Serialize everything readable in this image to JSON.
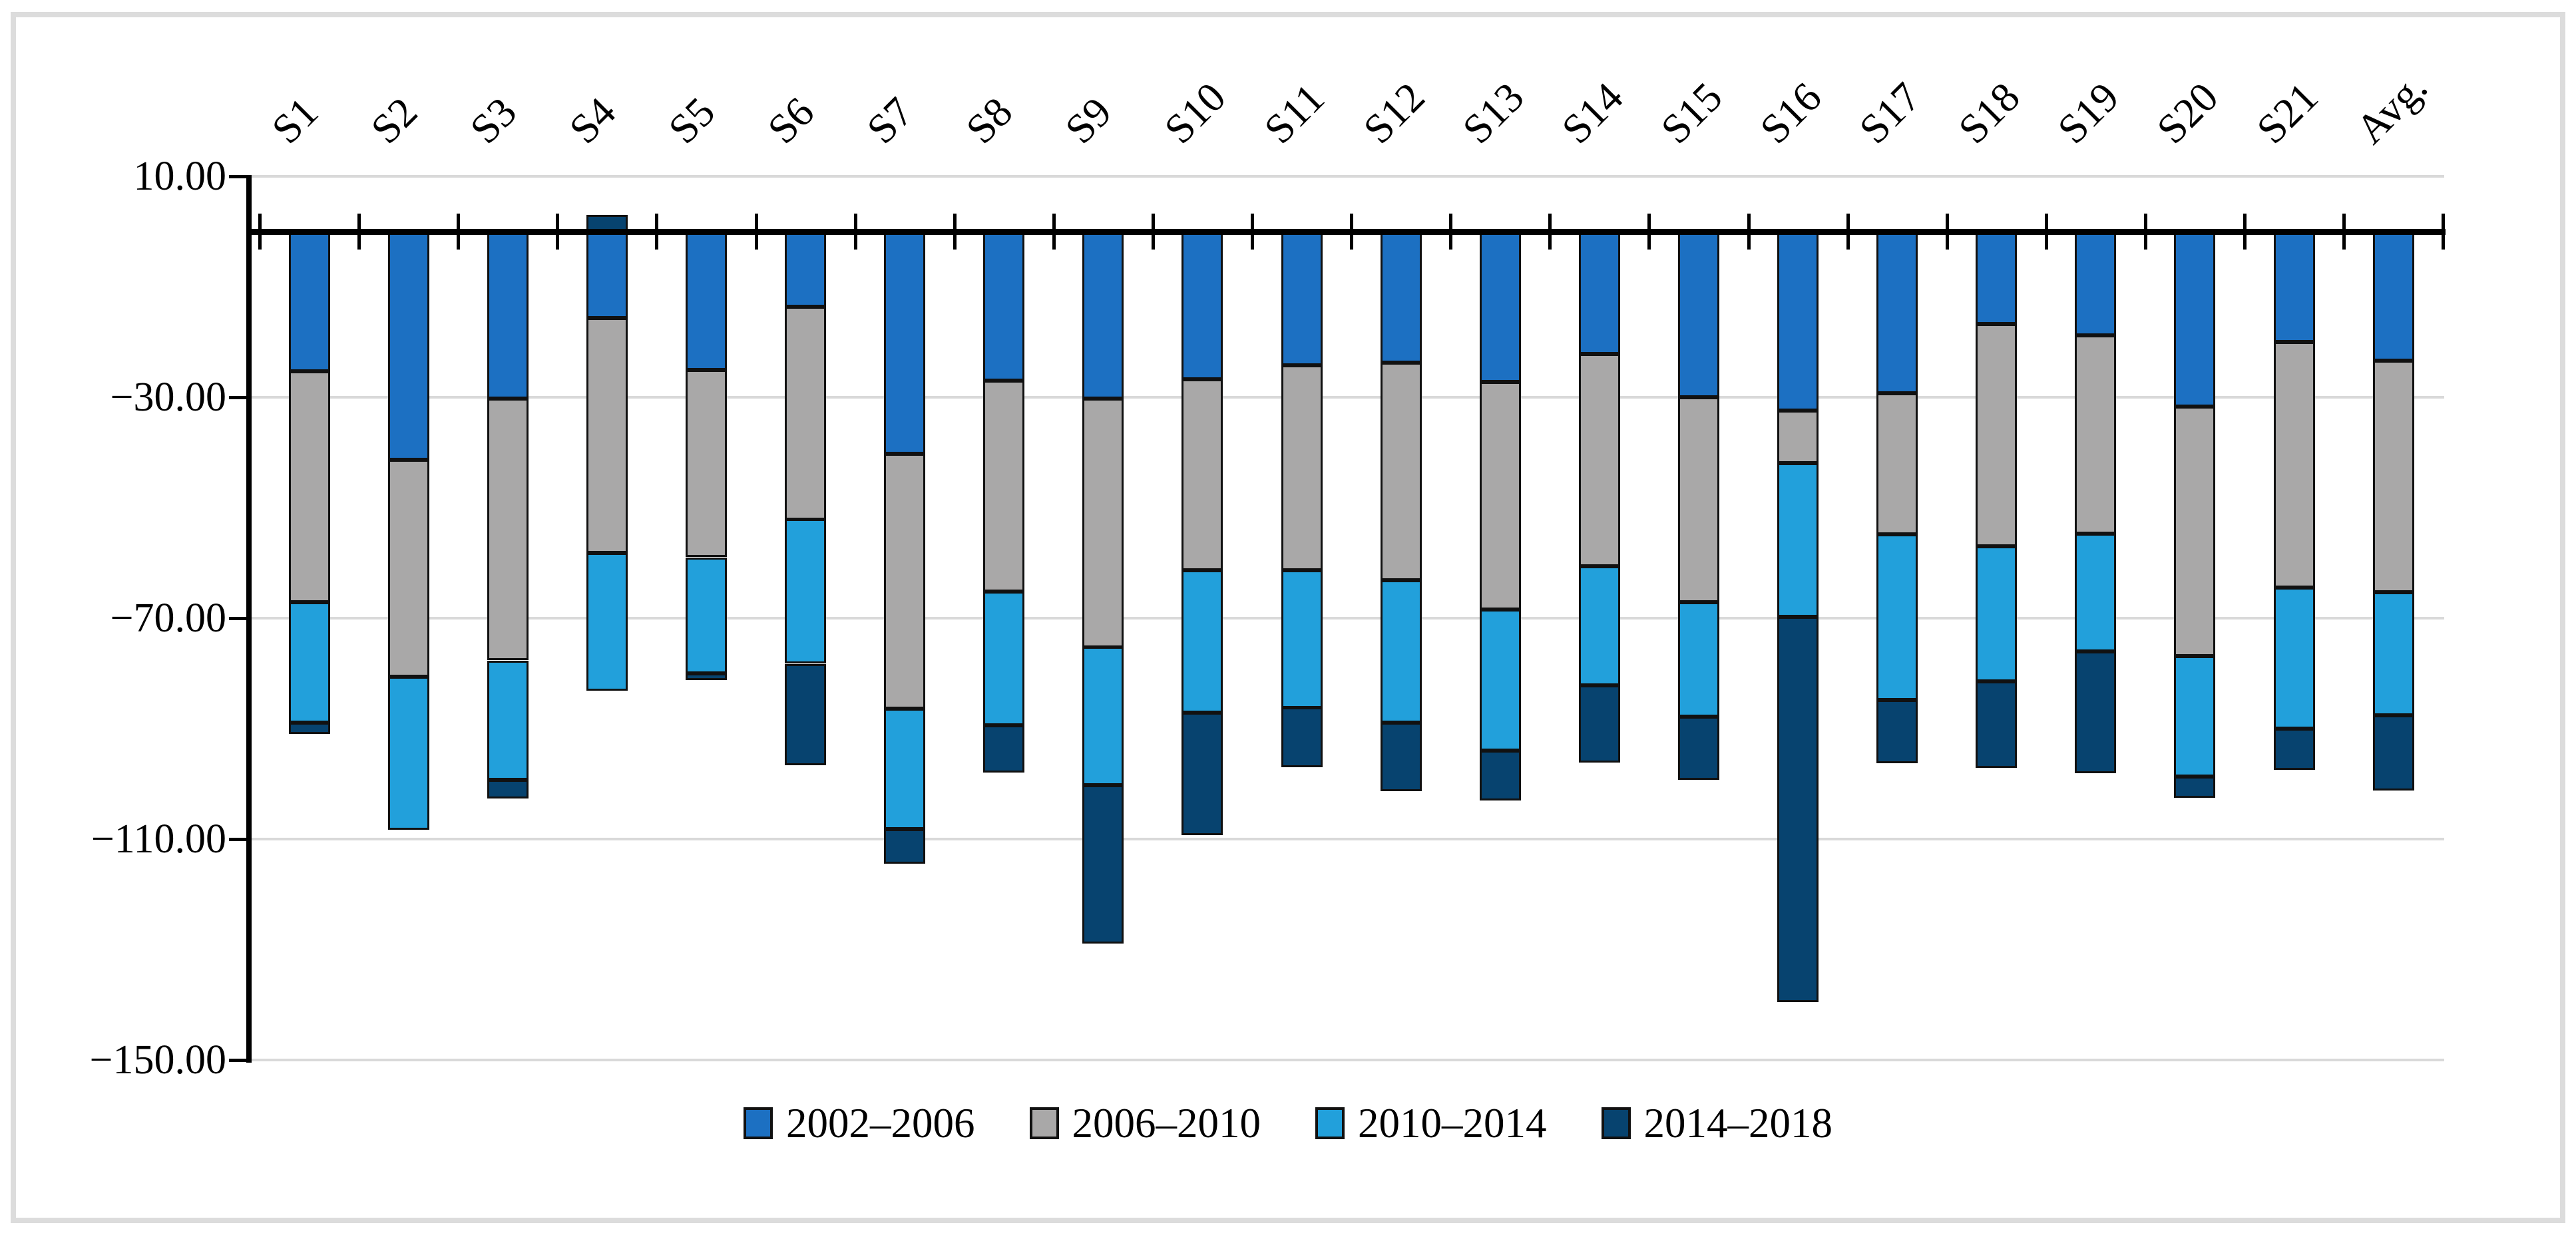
{
  "chart_data": {
    "type": "bar",
    "stacked": true,
    "orientation": "vertical-negative",
    "title": "",
    "xlabel": "",
    "ylabel": "",
    "categories": [
      "S1",
      "S2",
      "S3",
      "S4",
      "S5",
      "S6",
      "S7",
      "S8",
      "S9",
      "S10",
      "S11",
      "S12",
      "S13",
      "S14",
      "S15",
      "S16",
      "S17",
      "S18",
      "S19",
      "S20",
      "S21",
      "Avg."
    ],
    "series": [
      {
        "name": "2002–2006",
        "color": "#1C70C2",
        "values": [
          -25.3,
          -41.3,
          -30.3,
          -15.7,
          -25.1,
          -13.6,
          -40.3,
          -27.0,
          -30.2,
          -26.7,
          -24.2,
          -23.7,
          -27.2,
          -22.2,
          -30.0,
          -32.4,
          -29.3,
          -16.7,
          -18.8,
          -31.7,
          -20.0,
          -23.4
        ]
      },
      {
        "name": "2006–2010",
        "color": "#A9A8A8",
        "values": [
          -41.8,
          -39.3,
          -47.4,
          -42.5,
          -33.9,
          -38.5,
          -46.1,
          -38.2,
          -45.0,
          -34.6,
          -37.1,
          -39.4,
          -41.2,
          -38.4,
          -37.1,
          -9.5,
          -25.5,
          -40.3,
          -35.9,
          -45.2,
          -44.5,
          -41.9
        ]
      },
      {
        "name": "2010–2014",
        "color": "#22A0DB",
        "values": [
          -21.8,
          -27.7,
          -21.6,
          -24.9,
          -21.0,
          -26.2,
          -21.8,
          -24.2,
          -25.0,
          -25.8,
          -24.9,
          -25.8,
          -25.6,
          -21.6,
          -20.7,
          -27.8,
          -30.0,
          -24.4,
          -21.3,
          -21.8,
          -25.5,
          -22.3
        ]
      },
      {
        "name": "2014–2018",
        "color": "#07436F",
        "values": [
          -2.1,
          0.0,
          -3.4,
          3.0,
          -1.2,
          -18.3,
          -6.3,
          -8.6,
          -28.7,
          -22.2,
          -10.9,
          -12.4,
          -9.0,
          -14.0,
          -11.5,
          -69.7,
          -11.4,
          -15.7,
          -22.0,
          -3.9,
          -7.5,
          -13.6
        ]
      }
    ],
    "y_axis": {
      "tick_labels": [
        "10.00",
        "−30.00",
        "−70.00",
        "−110.00",
        "−150.00"
      ],
      "tick_values": [
        10,
        -30,
        -70,
        -110,
        -150
      ],
      "min": -150,
      "max": 10,
      "gridlines": true,
      "gridline_color": "#D9D9D9"
    },
    "legend_position": "bottom",
    "bar_outline_color": "#111111",
    "axis_color": "#000000",
    "frame_color": "#DCDCDC"
  }
}
